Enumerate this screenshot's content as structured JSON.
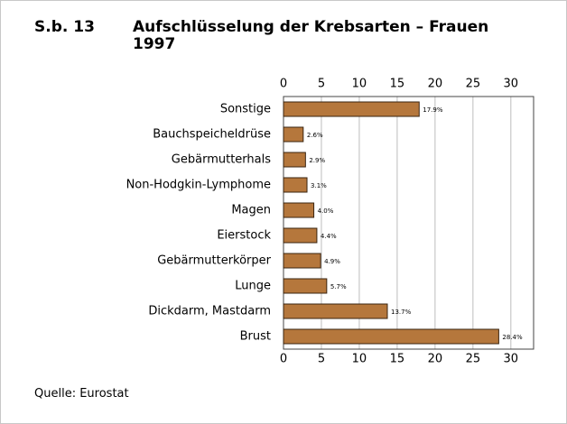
{
  "chart_data": {
    "type": "bar",
    "orientation": "horizontal",
    "label": "S.b. 13",
    "title": "Aufschlüsselung der Krebsarten – Frauen 1997",
    "categories": [
      "Sonstige",
      "Bauchspeicheldrüse",
      "Gebärmutterhals",
      "Non-Hodgkin-Lymphome",
      "Magen",
      "Eierstock",
      "Gebärmutterkörper",
      "Lunge",
      "Dickdarm, Mastdarm",
      "Brust"
    ],
    "values": [
      17.9,
      2.6,
      2.9,
      3.1,
      4.0,
      4.4,
      4.9,
      5.7,
      13.7,
      28.4
    ],
    "value_labels": [
      "17.9%",
      "2.6%",
      "2.9%",
      "3.1%",
      "4.0%",
      "4.4%",
      "4.9%",
      "5.7%",
      "13.7%",
      "28.4%"
    ],
    "color": "#b5773c",
    "xlim": [
      0,
      33
    ],
    "xticks": [
      0,
      5,
      10,
      15,
      20,
      25,
      30
    ],
    "grid": true,
    "source": "Quelle: Eurostat"
  }
}
